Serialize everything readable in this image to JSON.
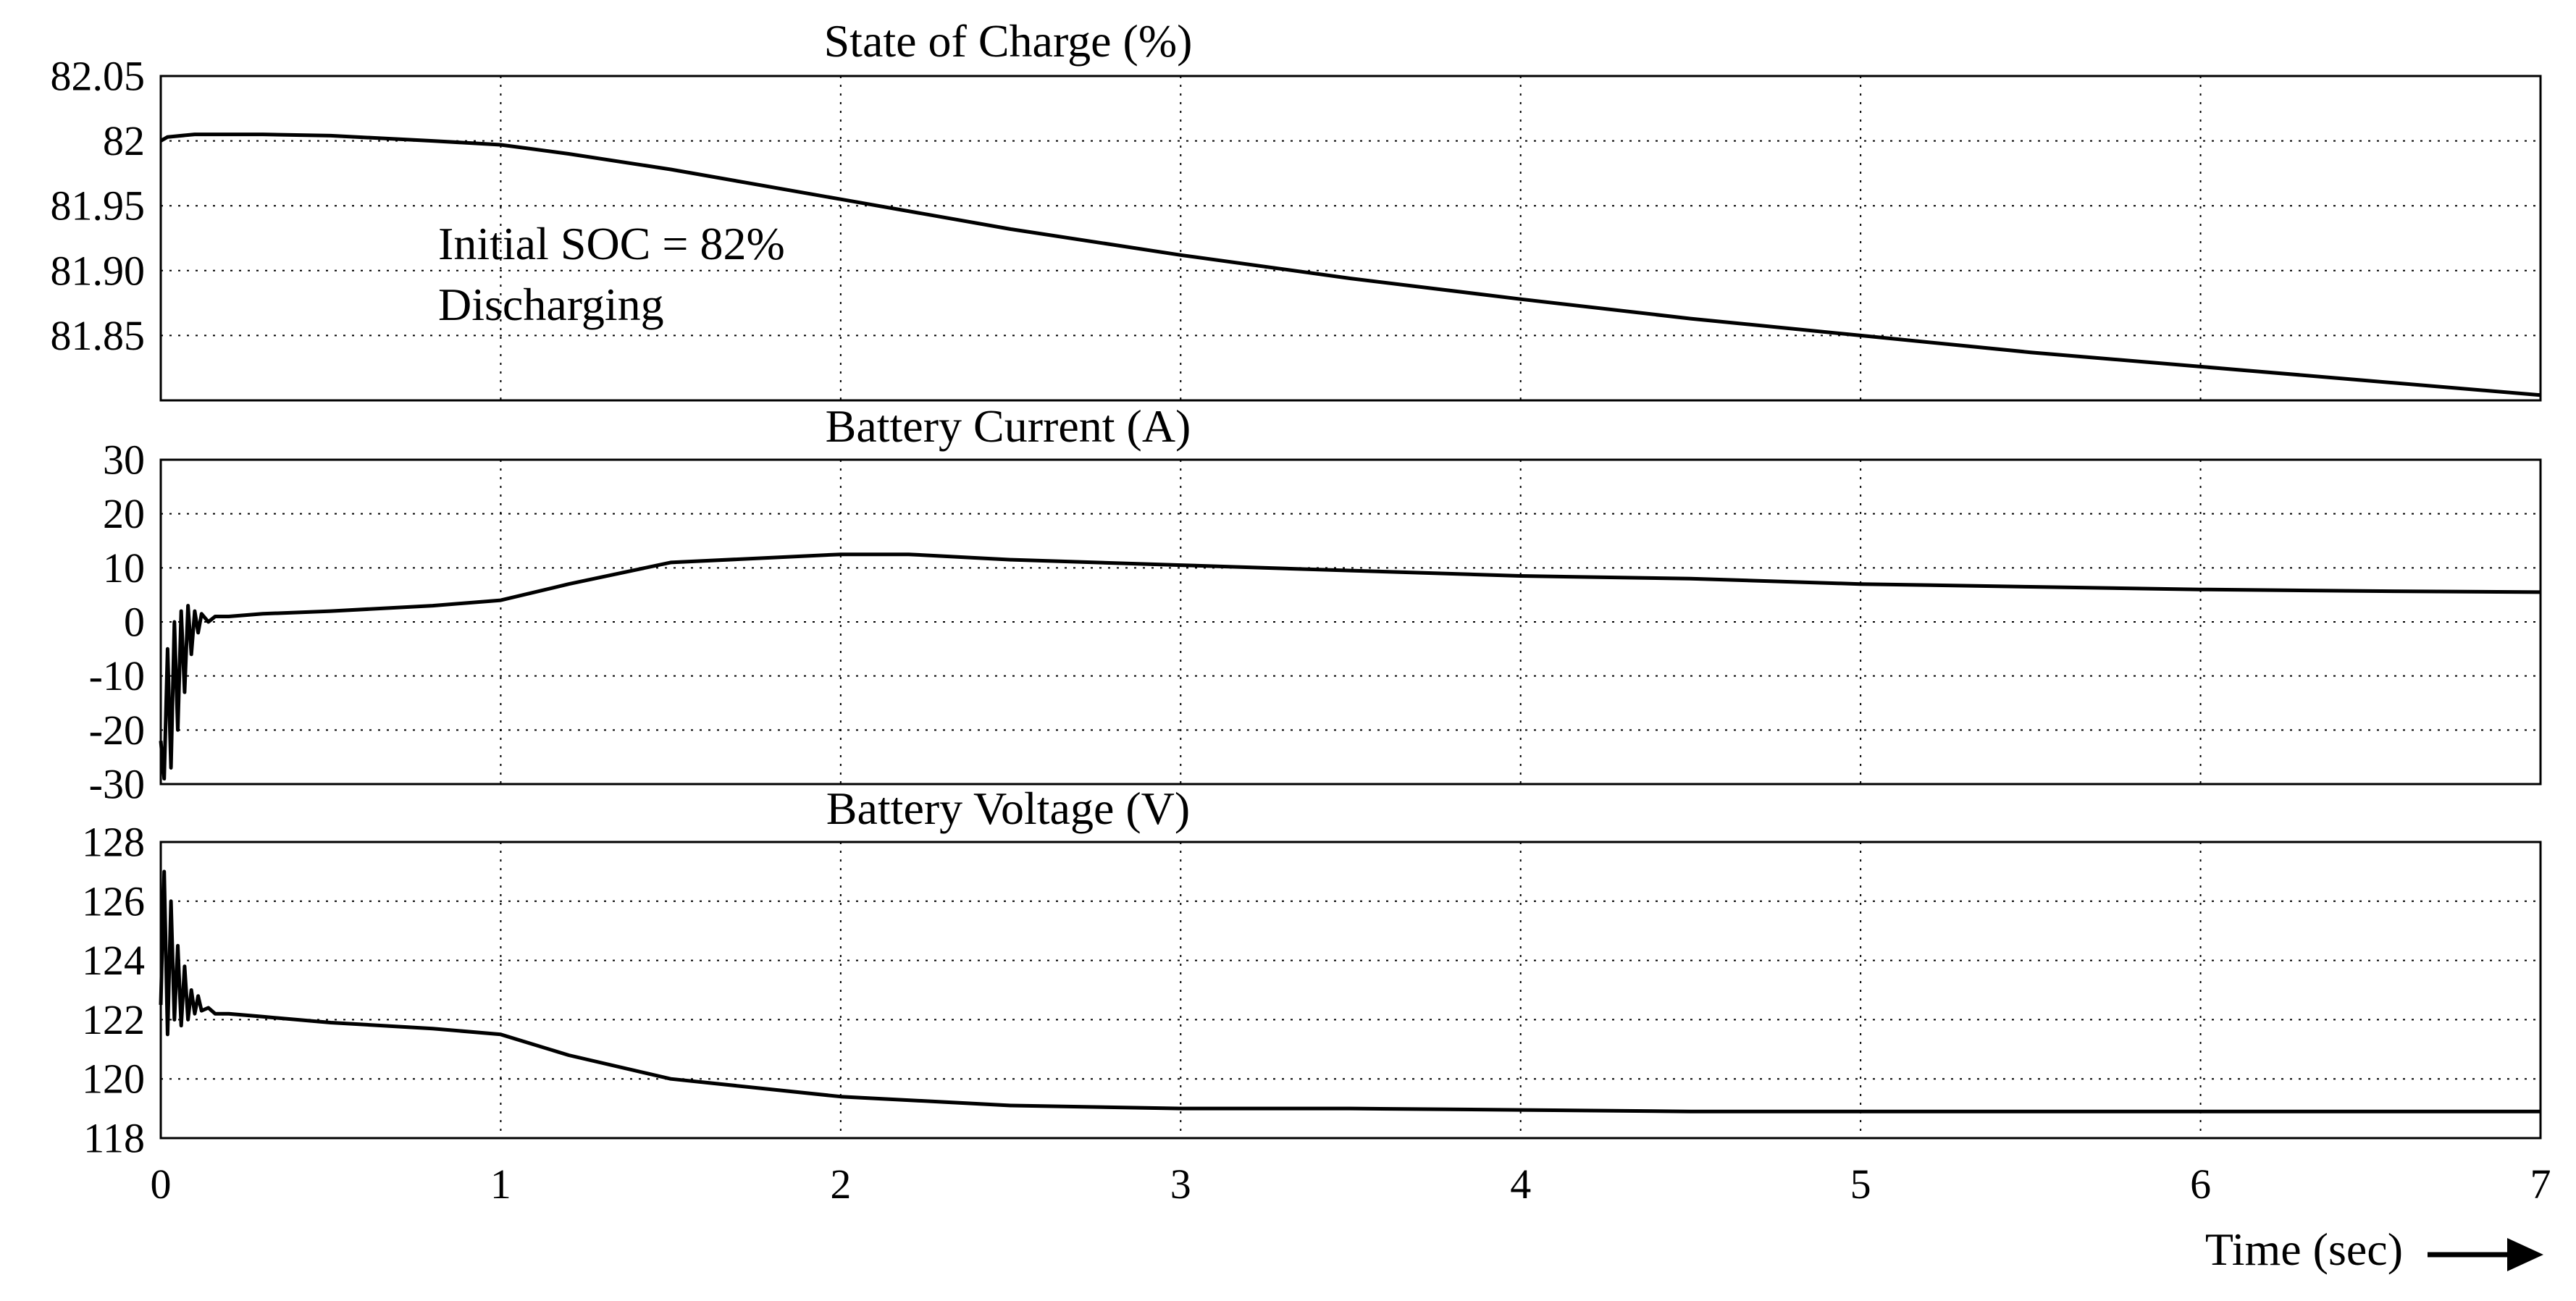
{
  "chart_data": [
    {
      "type": "line",
      "title": "State of Charge (%)",
      "xlim": [
        0,
        7
      ],
      "ylim": [
        81.8,
        82.05
      ],
      "yticks": [
        "82.05",
        "82",
        "81.95",
        "81.90",
        "81.85"
      ],
      "ytick_values": [
        82.05,
        82.0,
        81.95,
        81.9,
        81.85
      ],
      "xticks": [
        0,
        1,
        2,
        3,
        4,
        5,
        6,
        7
      ],
      "show_xtick_labels": false,
      "grid": true,
      "annotations": [
        "Initial SOC = 82%",
        "Discharging"
      ],
      "series": [
        {
          "x": [
            0,
            0.02,
            0.1,
            0.3,
            0.5,
            0.8,
            1.0,
            1.2,
            1.5,
            2.0,
            2.5,
            3.0,
            3.5,
            4.0,
            4.5,
            5.0,
            5.5,
            6.0,
            6.5,
            7.0
          ],
          "y": [
            82.0,
            82.003,
            82.005,
            82.005,
            82.004,
            82.0,
            81.997,
            81.99,
            81.978,
            81.955,
            81.932,
            81.912,
            81.894,
            81.878,
            81.863,
            81.85,
            81.837,
            81.826,
            81.815,
            81.804
          ]
        }
      ]
    },
    {
      "type": "line",
      "title": "Battery Current (A)",
      "xlim": [
        0,
        7
      ],
      "ylim": [
        -30,
        30
      ],
      "yticks": [
        "30",
        "20",
        "10",
        "0",
        "-10",
        "-20",
        "-30"
      ],
      "ytick_values": [
        30,
        20,
        10,
        0,
        -10,
        -20,
        -30
      ],
      "xticks": [
        0,
        1,
        2,
        3,
        4,
        5,
        6,
        7
      ],
      "show_xtick_labels": false,
      "grid": true,
      "series": [
        {
          "x": [
            0,
            0.01,
            0.02,
            0.03,
            0.04,
            0.05,
            0.06,
            0.07,
            0.08,
            0.09,
            0.1,
            0.11,
            0.12,
            0.14,
            0.16,
            0.2,
            0.3,
            0.5,
            0.8,
            1.0,
            1.2,
            1.5,
            2.0,
            2.2,
            2.5,
            3.0,
            3.5,
            4.0,
            4.5,
            5.0,
            5.5,
            6.0,
            6.5,
            7.0
          ],
          "y": [
            -22,
            -29,
            -5,
            -27,
            0,
            -20,
            2,
            -13,
            3,
            -6,
            2,
            -2,
            1.5,
            0,
            1,
            1,
            1.5,
            2,
            3,
            4,
            7,
            11,
            12.5,
            12.5,
            11.5,
            10.5,
            9.5,
            8.5,
            8,
            7,
            6.5,
            6,
            5.7,
            5.5
          ]
        }
      ]
    },
    {
      "type": "line",
      "title": "Battery Voltage (V)",
      "xlim": [
        0,
        7
      ],
      "ylim": [
        118,
        128
      ],
      "yticks": [
        "128",
        "126",
        "124",
        "122",
        "120",
        "118"
      ],
      "ytick_values": [
        128,
        126,
        124,
        122,
        120,
        118
      ],
      "xticks": [
        0,
        1,
        2,
        3,
        4,
        5,
        6,
        7
      ],
      "xtick_labels": [
        "0",
        "1",
        "2",
        "3",
        "4",
        "5",
        "6",
        "7"
      ],
      "show_xtick_labels": true,
      "xlabel": "Time (sec)",
      "grid": true,
      "series": [
        {
          "x": [
            0,
            0.01,
            0.02,
            0.03,
            0.04,
            0.05,
            0.06,
            0.07,
            0.08,
            0.09,
            0.1,
            0.11,
            0.12,
            0.14,
            0.16,
            0.2,
            0.3,
            0.5,
            0.8,
            1.0,
            1.2,
            1.5,
            2.0,
            2.5,
            3.0,
            3.5,
            4.0,
            4.5,
            5.0,
            5.5,
            6.0,
            6.5,
            7.0
          ],
          "y": [
            122.5,
            127,
            121.5,
            126,
            122,
            124.5,
            121.8,
            123.8,
            122,
            123,
            122.2,
            122.8,
            122.3,
            122.4,
            122.2,
            122.2,
            122.1,
            121.9,
            121.7,
            121.5,
            120.8,
            120.0,
            119.4,
            119.1,
            119.0,
            119.0,
            118.95,
            118.9,
            118.9,
            118.9,
            118.9,
            118.9,
            118.9
          ]
        }
      ]
    }
  ]
}
